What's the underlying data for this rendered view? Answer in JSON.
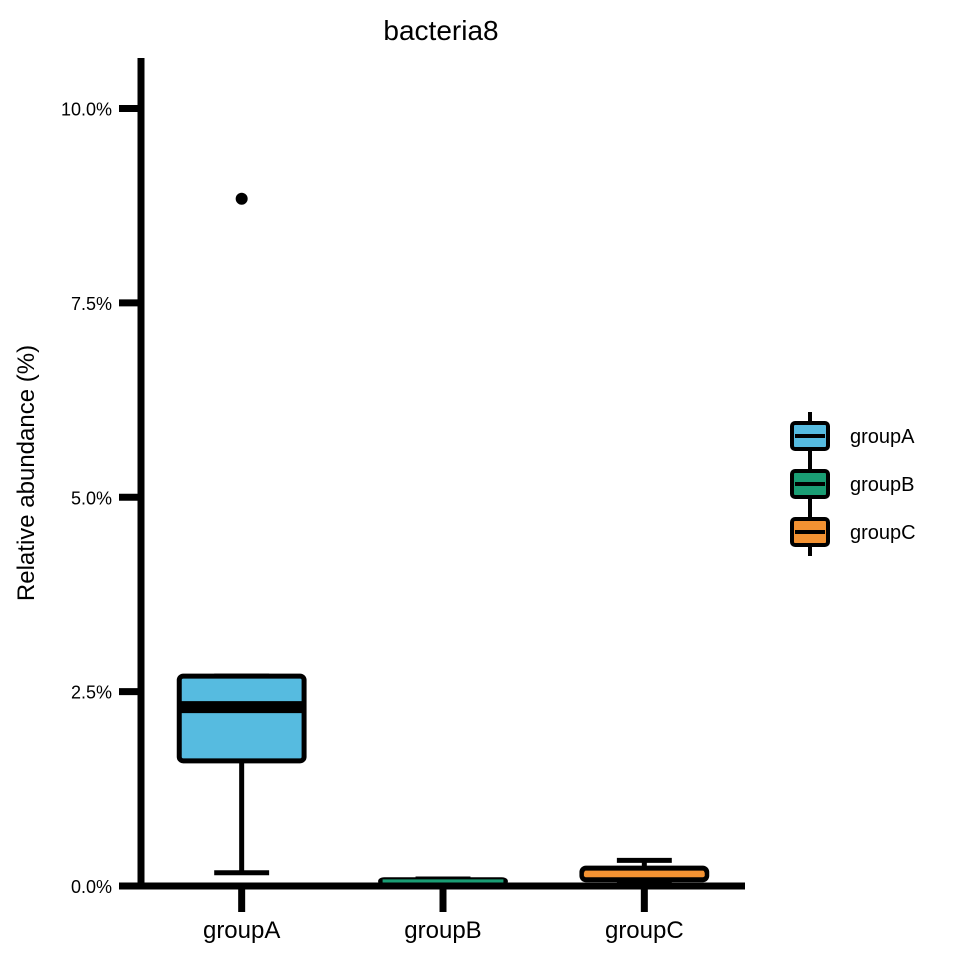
{
  "chart_data": {
    "type": "box",
    "title": "bacteria8",
    "xlabel": "",
    "ylabel": "Relative abundance (%)",
    "ylim": [
      0,
      0.1065
    ],
    "y_ticks": [
      0,
      0.025,
      0.05,
      0.075,
      0.1
    ],
    "y_tick_labels": [
      "0.0%",
      "2.5%",
      "5.0%",
      "7.5%",
      "10.0%"
    ],
    "categories": [
      "groupA",
      "groupB",
      "groupC"
    ],
    "grid": false,
    "legend_position": "right",
    "series": [
      {
        "name": "groupA",
        "color": "#56BBE0",
        "whisker_low": 0.0017,
        "q1": 0.0161,
        "median": 0.023,
        "q3": 0.027,
        "whisker_high": 0.027,
        "outliers": [
          0.0884
        ]
      },
      {
        "name": "groupB",
        "color": "#1A9E74",
        "whisker_low": 0.0002,
        "q1": 0.0004,
        "median": 0.0006,
        "q3": 0.0008,
        "whisker_high": 0.0009,
        "outliers": []
      },
      {
        "name": "groupC",
        "color": "#F39232",
        "whisker_low": 0.0003,
        "q1": 0.0008,
        "median": 0.0015,
        "q3": 0.0023,
        "whisker_high": 0.0033,
        "outliers": []
      }
    ]
  }
}
